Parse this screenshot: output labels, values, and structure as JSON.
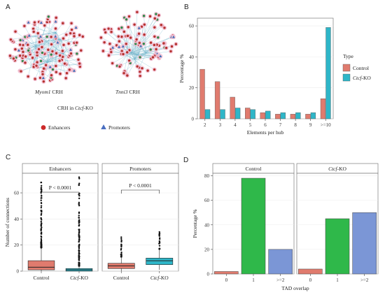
{
  "panels": {
    "a": {
      "letter": "A",
      "network1_label": "Myom1 CRH",
      "network1_italic": "Myom1",
      "network1_suffix": " CRH",
      "network2_italic": "Tnni3",
      "network2_suffix": " CRH",
      "caption_prefix": "CRH in ",
      "caption_italic": "Ctcf",
      "caption_suffix": "-KO",
      "legend": [
        {
          "label": "Enhancers",
          "color": "#cc2a2a",
          "shape": "circle"
        },
        {
          "label": "Promoters",
          "color": "#4a6fc1",
          "shape": "triangle"
        }
      ],
      "colors": {
        "enhancer": "#b5322e",
        "promoter": "#3d6fb5",
        "gene": "#2f8a4a",
        "edge": "#6fb3c9",
        "halo": "#f3c3d6"
      }
    },
    "b": {
      "letter": "B"
    },
    "c": {
      "letter": "C"
    },
    "d": {
      "letter": "D"
    }
  },
  "chart_data": [
    {
      "id": "B",
      "type": "bar",
      "xlabel": "Elements per hub",
      "ylabel": "Percentage %",
      "ylim": [
        0,
        65
      ],
      "yticks": [
        0,
        20,
        40,
        60
      ],
      "categories": [
        "2",
        "3",
        "4",
        "5",
        "6",
        "7",
        "8",
        "9",
        ">=10"
      ],
      "legend_title": "Type",
      "legend_position": "right",
      "series": [
        {
          "name": "Control",
          "name_italic": "",
          "color": "#e07b6e",
          "values": [
            32,
            24,
            14,
            7,
            4,
            3,
            3,
            3,
            13
          ]
        },
        {
          "name": "-KO",
          "name_italic": "Ctcf",
          "color": "#2eb6c8",
          "values": [
            6,
            6,
            7,
            6,
            5,
            4,
            4,
            4,
            59
          ]
        }
      ]
    },
    {
      "id": "C",
      "type": "box",
      "ylabel": "Number of connections",
      "ylim": [
        0,
        75
      ],
      "yticks": [
        0,
        20,
        40,
        60
      ],
      "facets": [
        {
          "title": "Enhancers",
          "pvalue": "P < 0.0001",
          "groups": [
            {
              "label": "Control",
              "label_italic": "",
              "color": "#e07b6e",
              "min": 0,
              "q1": 1,
              "median": 3,
              "q3": 8,
              "max": 18,
              "outlier_max": 68
            },
            {
              "label": "-KO",
              "label_italic": "Ctcf",
              "color": "#2eb6c8",
              "min": 0,
              "q1": 0,
              "median": 1,
              "q3": 2,
              "max": 4,
              "outlier_max": 72
            }
          ]
        },
        {
          "title": "Promoters",
          "pvalue": "P < 0.0001",
          "groups": [
            {
              "label": "Control",
              "label_italic": "",
              "color": "#e07b6e",
              "min": 0,
              "q1": 2,
              "median": 4,
              "q3": 6,
              "max": 11,
              "outlier_max": 26
            },
            {
              "label": "-KO",
              "label_italic": "Ctcf",
              "color": "#2eb6c8",
              "min": 1,
              "q1": 5,
              "median": 8,
              "q3": 10,
              "max": 17,
              "outlier_max": 30
            }
          ]
        }
      ]
    },
    {
      "id": "D",
      "type": "bar",
      "xlabel": "TAD overlap",
      "ylabel": "Percentage %",
      "ylim": [
        0,
        82
      ],
      "yticks": [
        0,
        20,
        40,
        60,
        80
      ],
      "facets": [
        {
          "title": "Control",
          "title_italic": "",
          "categories": [
            "0",
            "1",
            ">=2"
          ],
          "values": [
            2,
            78,
            20
          ],
          "colors": [
            "#e07b6e",
            "#2fb84a",
            "#7b96d6"
          ]
        },
        {
          "title": "-KO",
          "title_italic": "Ctcf",
          "categories": [
            "0",
            "1",
            ">=2"
          ],
          "values": [
            4,
            45,
            50
          ],
          "colors": [
            "#e07b6e",
            "#2fb84a",
            "#7b96d6"
          ]
        }
      ]
    }
  ]
}
